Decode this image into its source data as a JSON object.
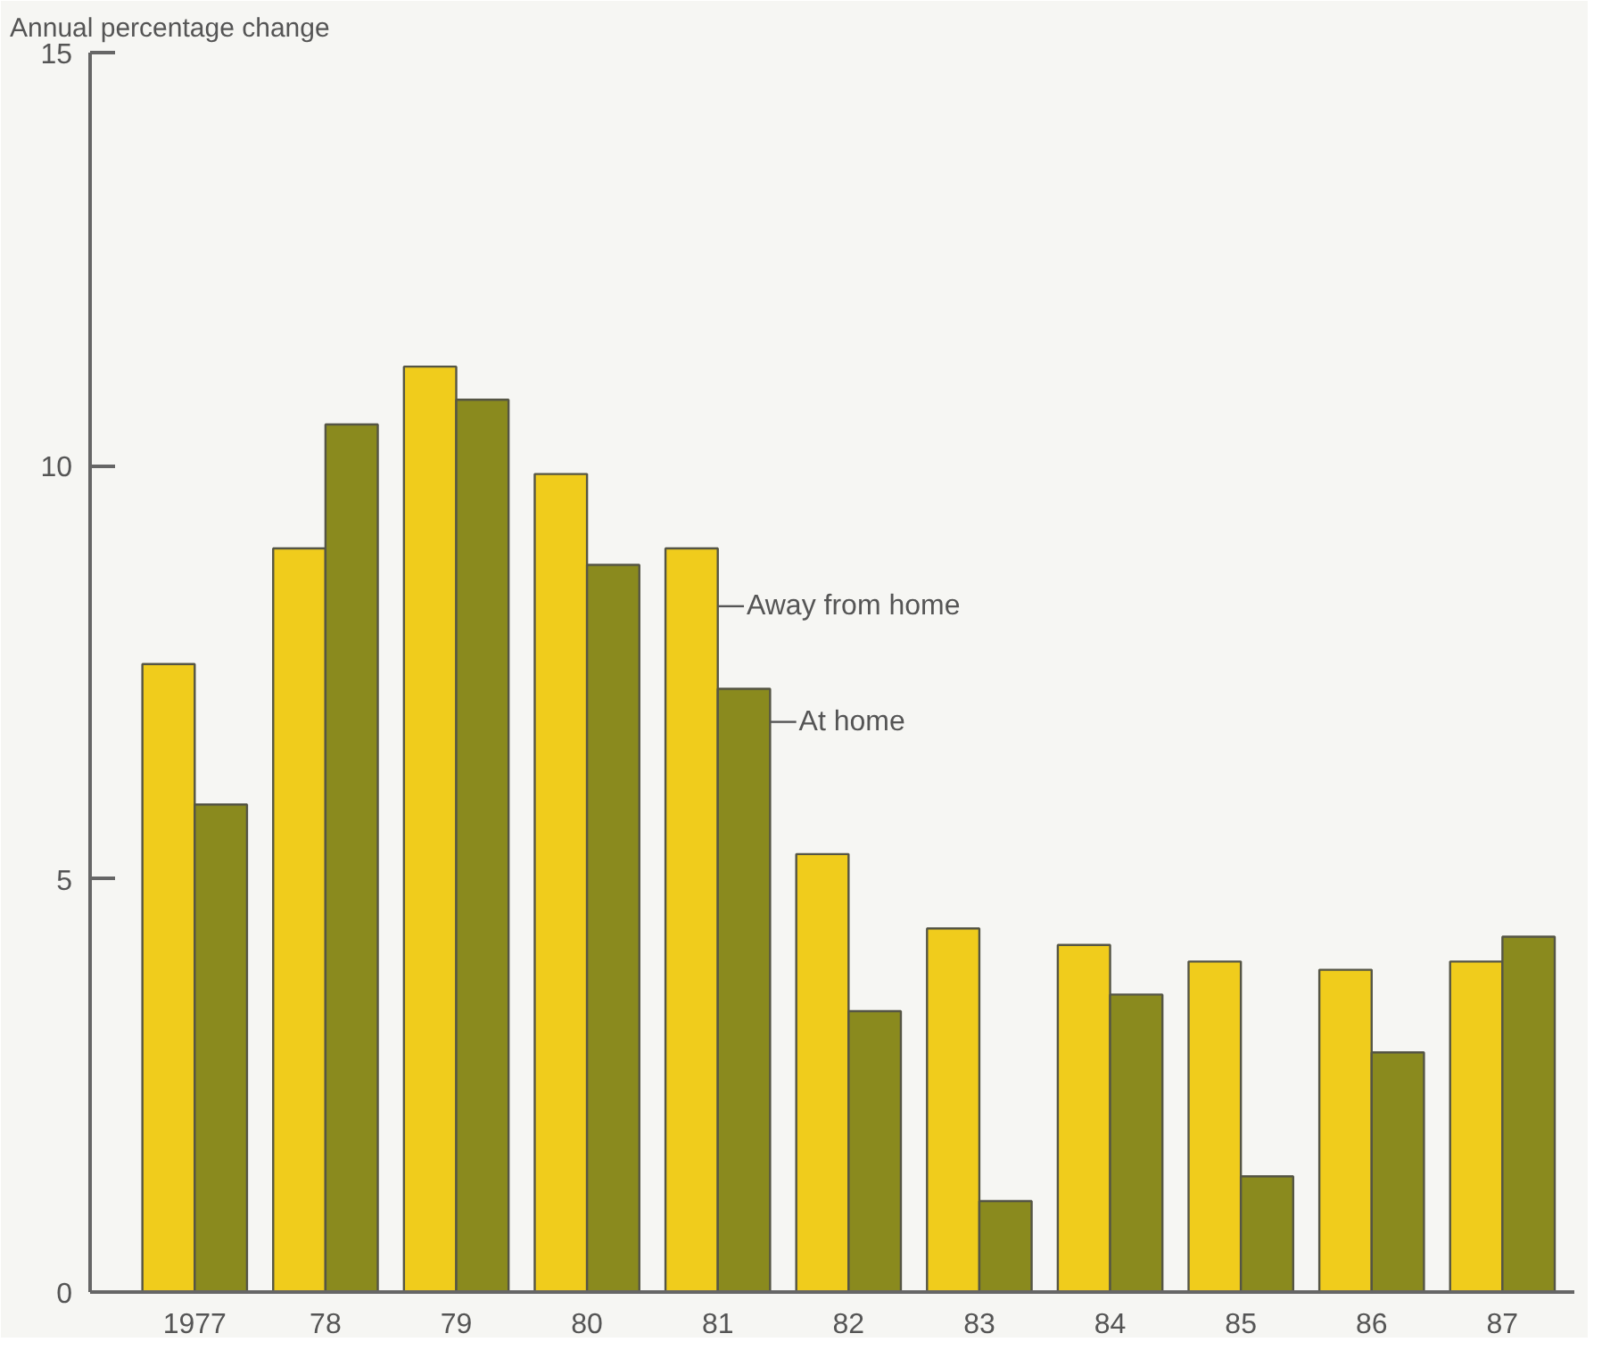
{
  "chart_data": {
    "type": "bar",
    "ylabel": "Annual percentage change",
    "categories": [
      "1977",
      "78",
      "79",
      "80",
      "81",
      "82",
      "83",
      "84",
      "85",
      "86",
      "87"
    ],
    "series": [
      {
        "name": "Away from home",
        "color": "#f0cc1c",
        "values": [
          7.6,
          9.0,
          11.2,
          9.9,
          9.0,
          5.3,
          4.4,
          4.2,
          4.0,
          3.9,
          4.0
        ]
      },
      {
        "name": "At home",
        "color": "#8a8a1e",
        "values": [
          5.9,
          10.5,
          10.8,
          8.8,
          7.3,
          3.4,
          1.1,
          3.6,
          1.4,
          2.9,
          4.3
        ]
      }
    ],
    "ylim": [
      0,
      15
    ],
    "yticks": [
      0,
      5,
      10,
      15
    ],
    "grid": false
  }
}
